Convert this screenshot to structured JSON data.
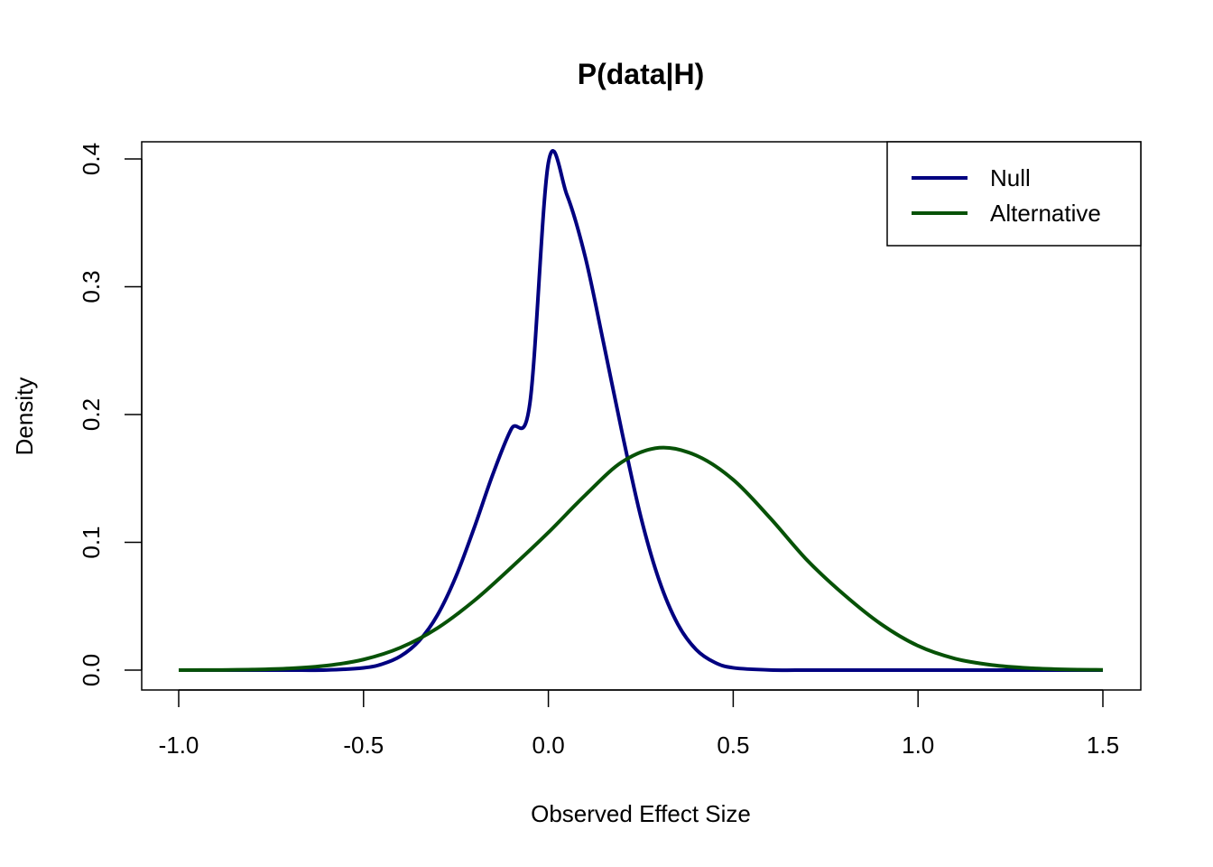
{
  "chart_data": {
    "type": "line",
    "title": "P(data|H)",
    "xlabel": "Observed Effect Size",
    "ylabel": "Density",
    "xlim": [
      -1.0,
      1.5
    ],
    "ylim": [
      0.0,
      0.4
    ],
    "x_ticks": [
      -1.0,
      -0.5,
      0.0,
      0.5,
      1.0,
      1.5
    ],
    "x_tick_labels": [
      "-1.0",
      "-0.5",
      "0.0",
      "0.5",
      "1.0",
      "1.5"
    ],
    "y_ticks": [
      0.0,
      0.1,
      0.2,
      0.3,
      0.4
    ],
    "y_tick_labels": [
      "0.0",
      "0.1",
      "0.2",
      "0.3",
      "0.4"
    ],
    "grid": false,
    "legend_position": "top-right",
    "series": [
      {
        "name": "Null",
        "color": "#000080",
        "x": [
          -1.0,
          -0.9,
          -0.8,
          -0.7,
          -0.6,
          -0.5,
          -0.45,
          -0.4,
          -0.35,
          -0.3,
          -0.25,
          -0.2,
          -0.15,
          -0.1,
          -0.05,
          0.0,
          0.05,
          0.1,
          0.15,
          0.2,
          0.25,
          0.3,
          0.35,
          0.4,
          0.45,
          0.5,
          0.6,
          0.7,
          0.8,
          0.9,
          1.0,
          1.1,
          1.2,
          1.3,
          1.4,
          1.5
        ],
        "y": [
          0.0,
          0.0,
          0.0,
          0.0,
          0.0001,
          0.0018,
          0.0047,
          0.0109,
          0.0228,
          0.0431,
          0.0733,
          0.1119,
          0.1534,
          0.1888,
          0.2088,
          0.397,
          0.372,
          0.323,
          0.255,
          0.185,
          0.12,
          0.07,
          0.036,
          0.016,
          0.006,
          0.0018,
          0.0001,
          0.0,
          0.0,
          0.0,
          0.0,
          0.0,
          0.0,
          0.0,
          0.0,
          0.0
        ]
      },
      {
        "name": "Alternative",
        "color": "#075207",
        "x": [
          -1.0,
          -0.9,
          -0.8,
          -0.7,
          -0.6,
          -0.5,
          -0.4,
          -0.3,
          -0.2,
          -0.1,
          0.0,
          0.1,
          0.2,
          0.3,
          0.4,
          0.5,
          0.6,
          0.7,
          0.8,
          0.9,
          1.0,
          1.1,
          1.2,
          1.3,
          1.4,
          1.5
        ],
        "y": [
          0.0,
          0.0001,
          0.0004,
          0.0013,
          0.0035,
          0.0083,
          0.0176,
          0.0329,
          0.0545,
          0.0804,
          0.1077,
          0.137,
          0.163,
          0.174,
          0.168,
          0.149,
          0.119,
          0.086,
          0.059,
          0.036,
          0.019,
          0.009,
          0.004,
          0.0016,
          0.0005,
          0.0002
        ]
      }
    ]
  }
}
